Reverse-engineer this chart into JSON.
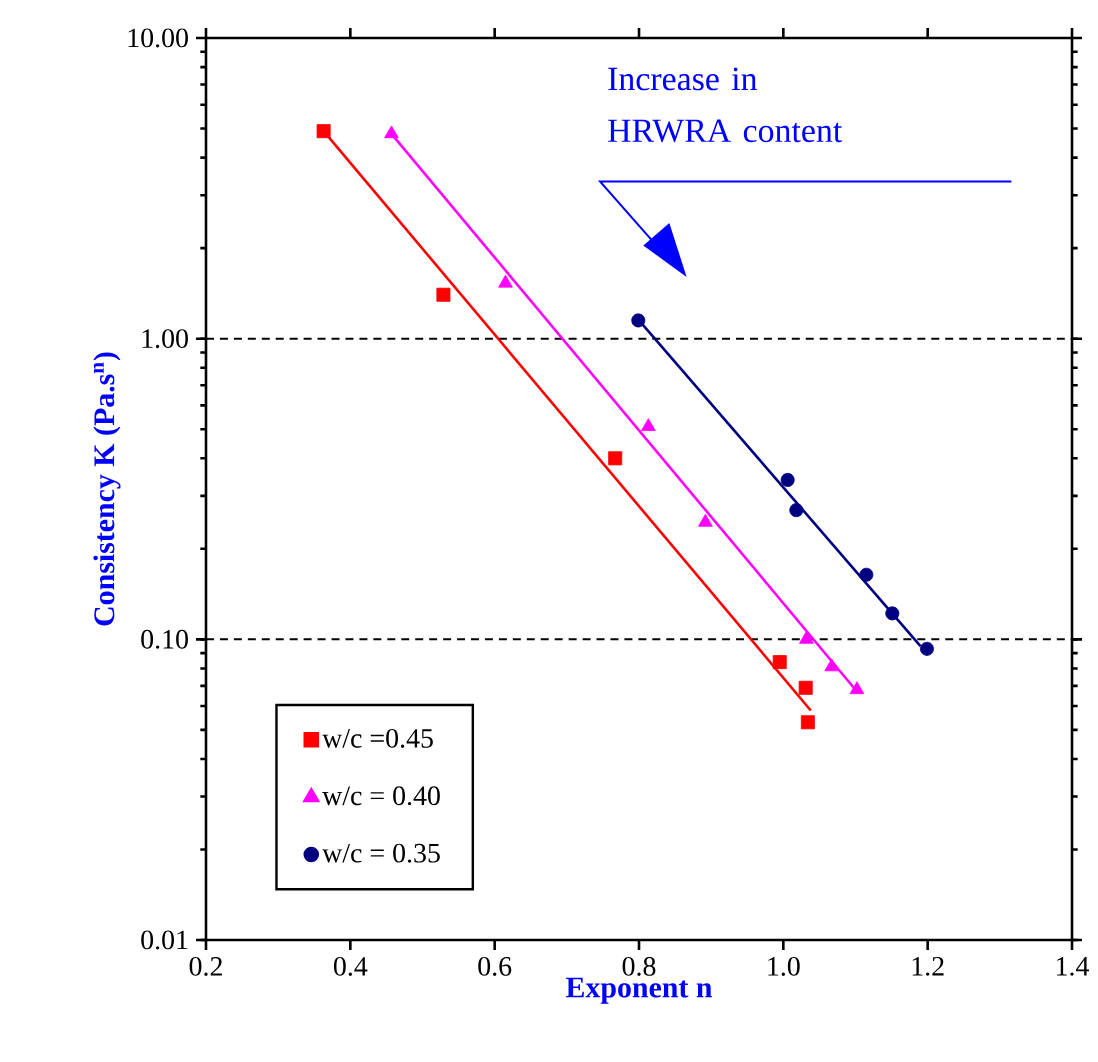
{
  "chart_data": {
    "type": "scatter",
    "xlabel": "Exponent n",
    "ylabel": "Consistency K (Pa.s$^{n}$)",
    "log": "y",
    "xlim": [
      0.2,
      1.4
    ],
    "ylim": [
      0.01,
      10
    ],
    "xticks": [
      0.2,
      0.4,
      0.6,
      0.8,
      {
        "value": 1.0,
        "label": "1.0"
      },
      1.2,
      1.4
    ],
    "yticks": [
      {
        "value": 0.01,
        "label": "0.01"
      },
      {
        "value": 0.1,
        "label": "0.10"
      },
      {
        "value": 1,
        "label": "1.00"
      },
      {
        "value": 10,
        "label": "10.00"
      }
    ],
    "legend": "bottom left",
    "series": [
      {
        "name": "w/c =0.45",
        "color": "#ff0000",
        "marker": "square",
        "x": [
          0.363,
          0.529,
          0.767,
          0.995,
          1.031,
          1.034
        ],
        "values": [
          4.9,
          1.4,
          0.4,
          0.084,
          0.069,
          0.053
        ]
      },
      {
        "name": "w/c = 0.40",
        "color": "#ff00ff",
        "marker": "triangle",
        "x": [
          0.457,
          0.615,
          0.813,
          0.892,
          1.032,
          1.067,
          1.102
        ],
        "values": [
          4.8,
          1.53,
          0.51,
          0.245,
          0.1,
          0.081,
          0.068
        ]
      },
      {
        "name": "w/c = 0.35",
        "color": "#000080",
        "marker": "circle",
        "x": [
          0.799,
          1.006,
          1.018,
          1.115,
          1.151,
          1.199
        ],
        "values": [
          1.15,
          0.339,
          0.269,
          0.164,
          0.122,
          0.093
        ]
      },
      {
        "type": "line",
        "color": "#ff0000",
        "marker": "none",
        "x": [
          0.363,
          1.038
        ],
        "values": [
          4.9,
          0.058
        ]
      },
      {
        "type": "line",
        "color": "#ff00ff",
        "marker": "none",
        "x": [
          0.457,
          1.1
        ],
        "values": [
          4.8,
          0.068
        ]
      },
      {
        "type": "line",
        "color": "#000080",
        "marker": "none",
        "x": [
          0.8,
          1.19
        ],
        "values": [
          1.15,
          0.095
        ]
      }
    ],
    "ref_lines": [
      {
        "axis": "y",
        "value": 1,
        "line_style": "dashed",
        "color": "#000000"
      },
      {
        "axis": "y",
        "value": 0.1,
        "line_style": "dashed",
        "color": "#000000"
      }
    ],
    "annotations": [
      "Increase in HRWRA content"
    ]
  }
}
